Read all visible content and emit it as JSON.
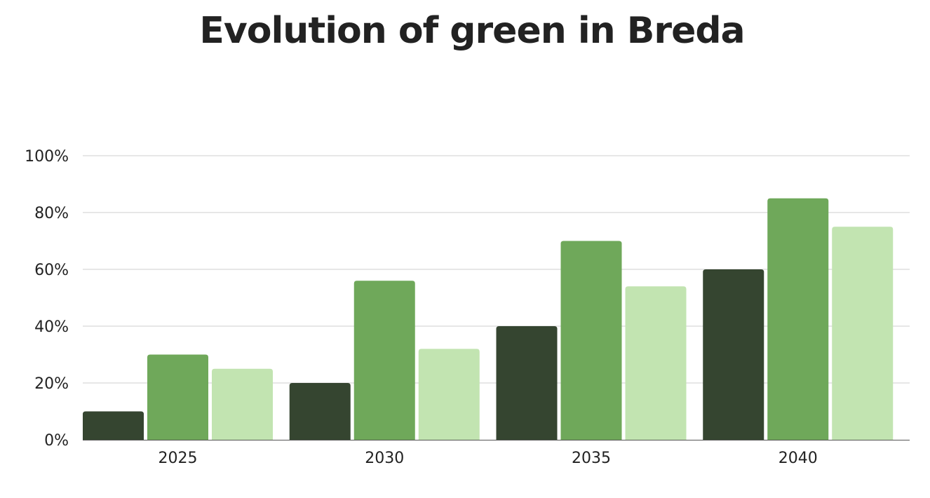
{
  "chart_data": {
    "type": "bar",
    "title": "Evolution of green in Breda",
    "xlabel": "",
    "ylabel": "",
    "categories": [
      "2025",
      "2030",
      "2035",
      "2040"
    ],
    "series": [
      {
        "color": "#354530",
        "values": [
          10,
          20,
          40,
          60
        ]
      },
      {
        "color": "#6fa85a",
        "values": [
          30,
          56,
          70,
          85
        ]
      },
      {
        "color": "#c2e4b1",
        "values": [
          25,
          32,
          54,
          75
        ]
      }
    ],
    "ylim": [
      0,
      100
    ],
    "yticks": [
      0,
      20,
      40,
      60,
      80,
      100
    ],
    "ytick_labels": [
      "0%",
      "20%",
      "40%",
      "60%",
      "80%",
      "100%"
    ],
    "grid": true,
    "legend": "none"
  }
}
